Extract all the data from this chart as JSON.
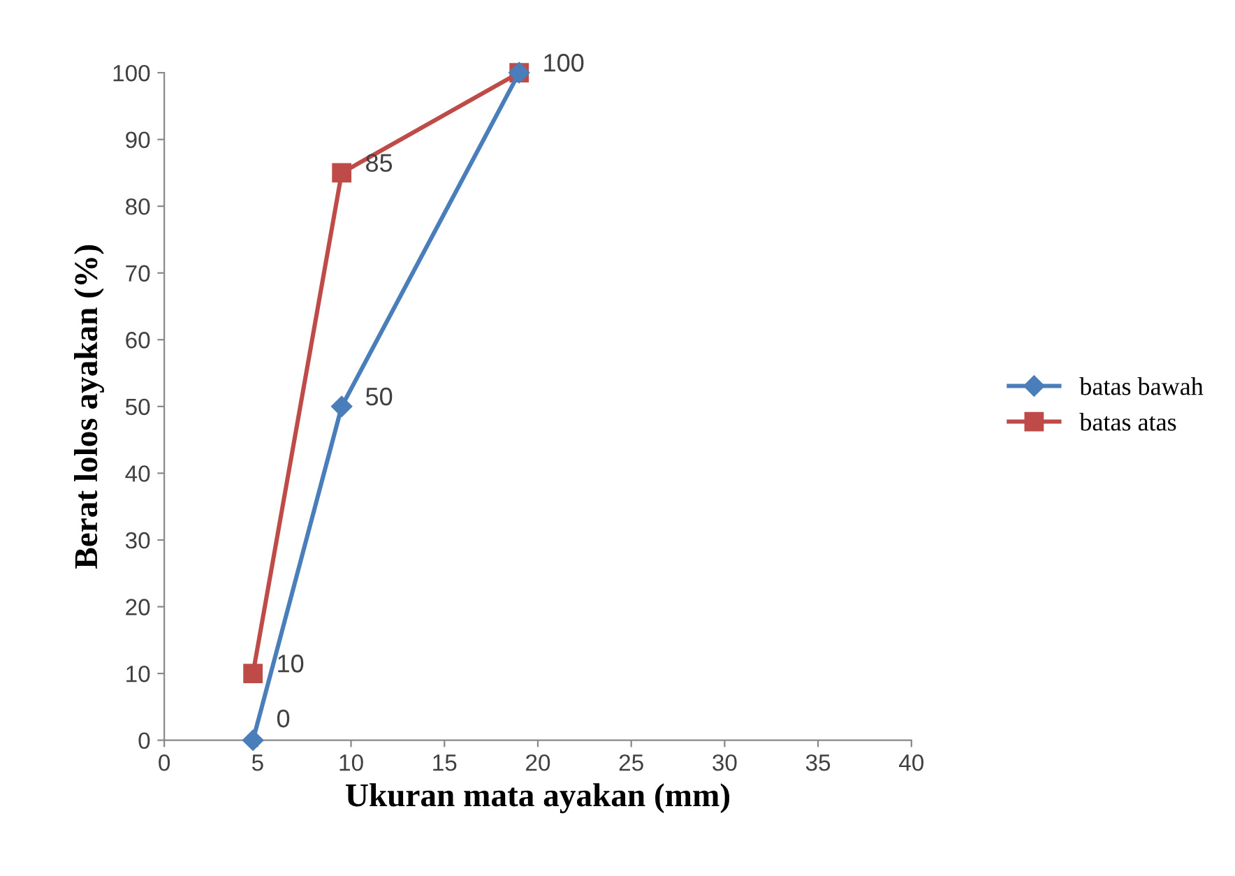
{
  "chart_data": {
    "type": "line",
    "xlabel": "Ukuran mata ayakan (mm)",
    "ylabel": "Berat lolos ayakan (%)",
    "xlim": [
      0,
      40
    ],
    "xticks": [
      0,
      5,
      10,
      15,
      20,
      25,
      30,
      35,
      40
    ],
    "ylim": [
      0,
      100
    ],
    "yticks": [
      0,
      10,
      20,
      30,
      40,
      50,
      60,
      70,
      80,
      90,
      100
    ],
    "grid": false,
    "legend": "right",
    "line_style": "solid",
    "series": [
      {
        "name": "batas bawah",
        "color": "#4a7ebb",
        "marker": "diamond",
        "x": [
          4.75,
          9.5,
          19
        ],
        "values": [
          0,
          50,
          100
        ],
        "value_labels": [
          "0",
          "50",
          null
        ]
      },
      {
        "name": "batas atas",
        "color": "#be4b48",
        "marker": "square",
        "x": [
          4.75,
          9.5,
          19
        ],
        "values": [
          10,
          85,
          100
        ],
        "value_labels": [
          "10",
          "85",
          "100"
        ]
      }
    ]
  }
}
